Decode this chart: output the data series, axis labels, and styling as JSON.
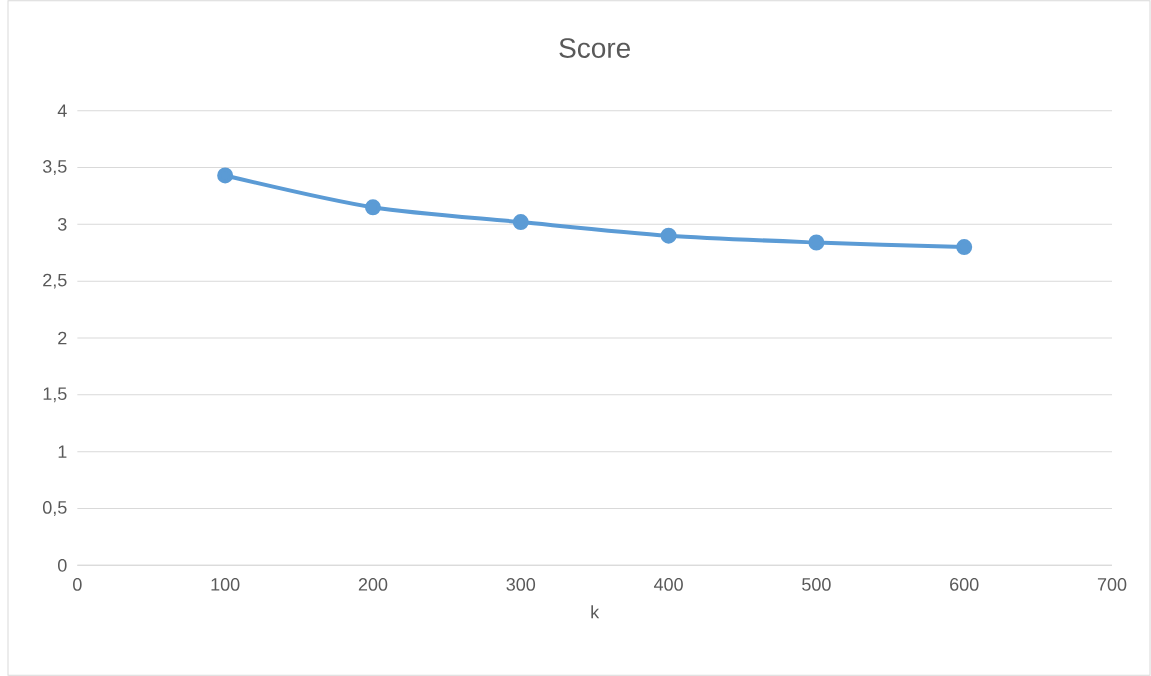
{
  "chart_data": {
    "type": "line",
    "title": "Score",
    "xlabel": "k",
    "x": [
      100,
      200,
      300,
      400,
      500,
      600
    ],
    "series": [
      {
        "color": "#5b9bd5",
        "values": [
          3.43,
          3.15,
          3.02,
          2.9,
          2.84,
          2.8
        ]
      }
    ],
    "xlim": [
      0,
      700
    ],
    "xticks": [
      0,
      100,
      200,
      300,
      400,
      500,
      600,
      700
    ],
    "ylim": [
      0,
      4
    ],
    "yticks": [
      0,
      {
        "value": 0.5,
        "label": "0,5"
      },
      1,
      {
        "value": 1.5,
        "label": "1,5"
      },
      2,
      {
        "value": 2.5,
        "label": "2,5"
      },
      3,
      {
        "value": 3.5,
        "label": "3,5"
      },
      4
    ],
    "grid": "y",
    "marker": "circle",
    "line_style": "solid"
  }
}
